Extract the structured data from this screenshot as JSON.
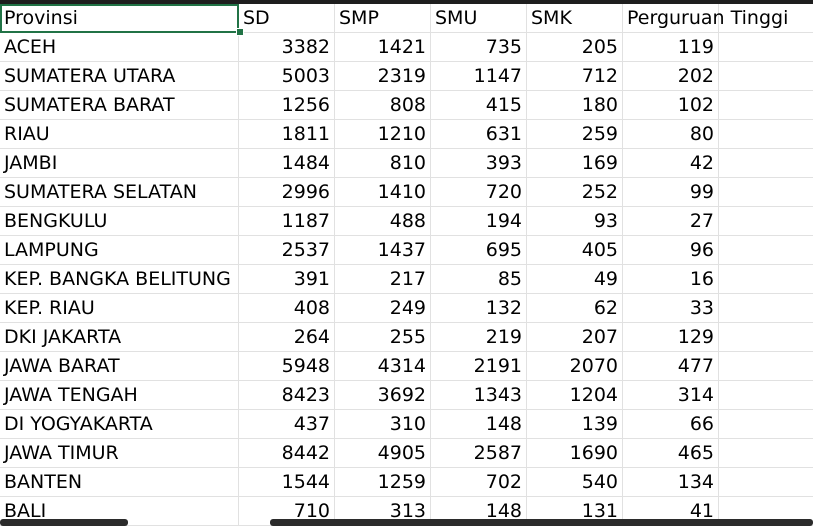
{
  "headers": [
    "Provinsi",
    "SD",
    "SMP",
    "SMU",
    "SMK",
    "Perguruan Tinggi"
  ],
  "rows": [
    [
      "ACEH",
      "3382",
      "1421",
      "735",
      "205",
      "119"
    ],
    [
      "SUMATERA UTARA",
      "5003",
      "2319",
      "1147",
      "712",
      "202"
    ],
    [
      "SUMATERA BARAT",
      "1256",
      "808",
      "415",
      "180",
      "102"
    ],
    [
      "RIAU",
      "1811",
      "1210",
      "631",
      "259",
      "80"
    ],
    [
      "JAMBI",
      "1484",
      "810",
      "393",
      "169",
      "42"
    ],
    [
      "SUMATERA SELATAN",
      "2996",
      "1410",
      "720",
      "252",
      "99"
    ],
    [
      "BENGKULU",
      "1187",
      "488",
      "194",
      "93",
      "27"
    ],
    [
      "LAMPUNG",
      "2537",
      "1437",
      "695",
      "405",
      "96"
    ],
    [
      "KEP. BANGKA BELITUNG",
      "391",
      "217",
      "85",
      "49",
      "16"
    ],
    [
      "KEP. RIAU",
      "408",
      "249",
      "132",
      "62",
      "33"
    ],
    [
      "DKI JAKARTA",
      "264",
      "255",
      "219",
      "207",
      "129"
    ],
    [
      "JAWA BARAT",
      "5948",
      "4314",
      "2191",
      "2070",
      "477"
    ],
    [
      "JAWA TENGAH",
      "8423",
      "3692",
      "1343",
      "1204",
      "314"
    ],
    [
      "DI YOGYAKARTA",
      "437",
      "310",
      "148",
      "139",
      "66"
    ],
    [
      "JAWA TIMUR",
      "8442",
      "4905",
      "2587",
      "1690",
      "465"
    ],
    [
      "BANTEN",
      "1544",
      "1259",
      "702",
      "540",
      "134"
    ],
    [
      "BALI",
      "710",
      "313",
      "148",
      "131",
      "41"
    ]
  ],
  "colors": {
    "selection": "#217346",
    "gridline": "#e1e1e1"
  }
}
